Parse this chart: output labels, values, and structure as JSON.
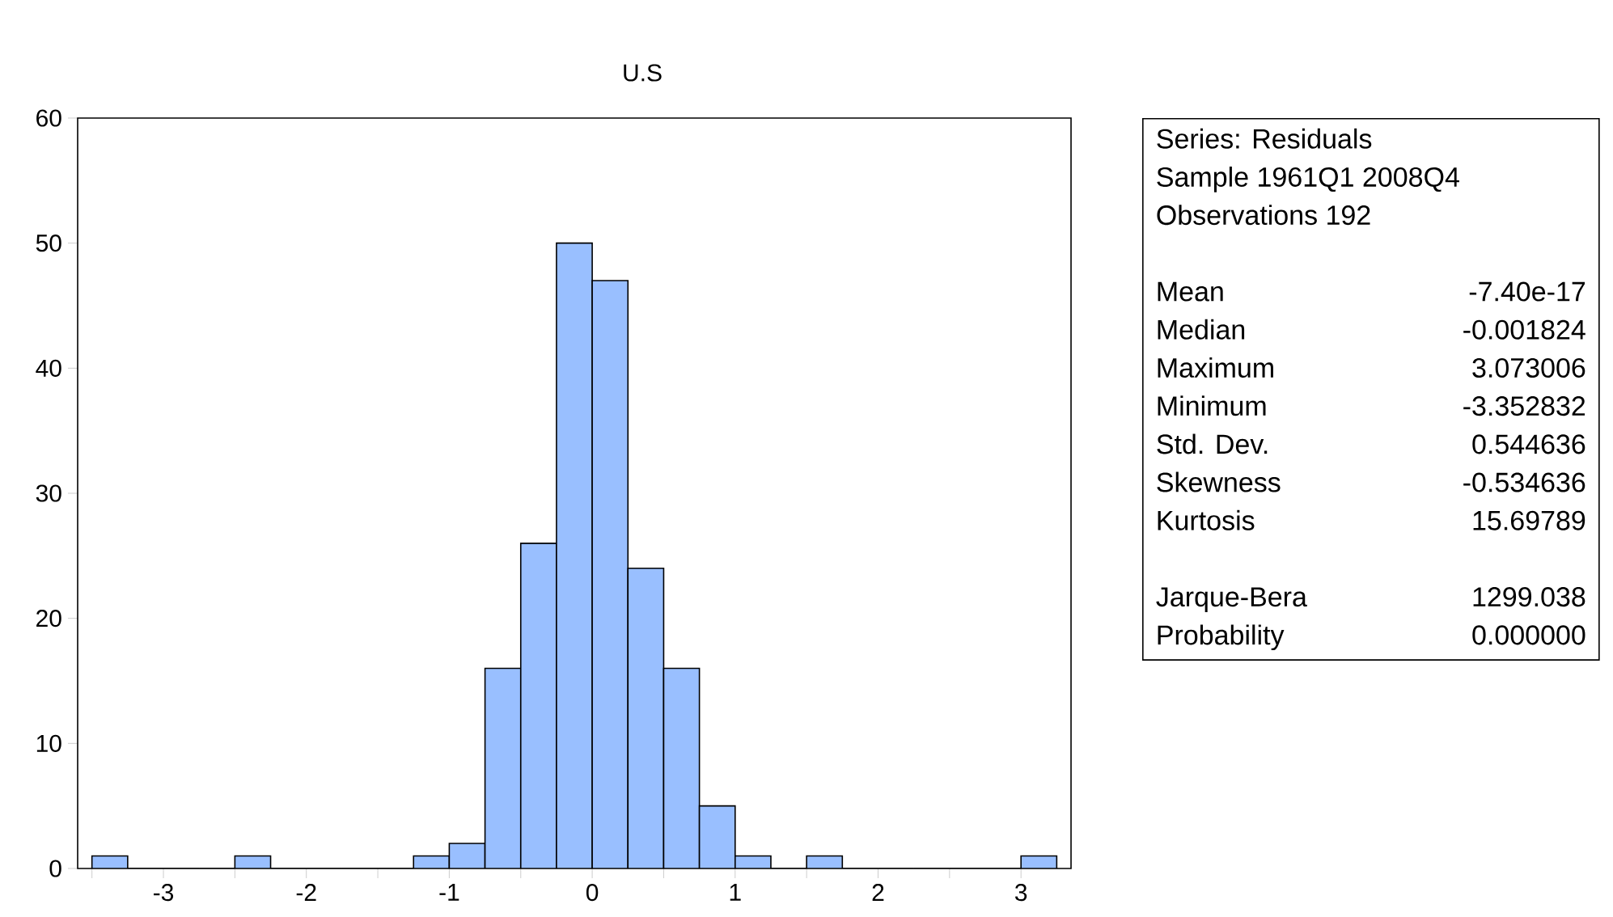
{
  "chart_data": {
    "type": "histogram",
    "title": "U.S",
    "color": "#99bfff",
    "bins": [
      -3.5,
      -3.25,
      -3.0,
      -2.75,
      -2.5,
      -2.25,
      -2.0,
      -1.75,
      -1.5,
      -1.25,
      -1.0,
      -0.75,
      -0.5,
      -0.25,
      0,
      0.25,
      0.5,
      0.75,
      1.0,
      1.25,
      1.5,
      1.75,
      2.0,
      2.25,
      2.5,
      2.75,
      3.0,
      3.25
    ],
    "values": [
      1,
      0,
      0,
      0,
      1,
      0,
      0,
      0,
      0,
      1,
      2,
      16,
      26,
      50,
      47,
      24,
      16,
      5,
      1,
      0,
      1,
      0,
      0,
      0,
      0,
      0,
      1
    ],
    "xlim": [
      -3.6,
      3.35
    ],
    "ylim": [
      0,
      60
    ],
    "xticks": [
      {
        "value": -3.5,
        "label": null
      },
      -3,
      {
        "value": -2.5,
        "label": null
      },
      -2,
      {
        "value": -1.5,
        "label": null
      },
      -1,
      {
        "value": -0.5,
        "label": null
      },
      0,
      {
        "value": 0.5,
        "label": null
      },
      1,
      {
        "value": 1.5,
        "label": null
      },
      2,
      {
        "value": 2.5,
        "label": null
      },
      3
    ],
    "yticks": [
      0,
      10,
      20,
      30,
      40,
      50,
      60
    ],
    "grid": false,
    "annotations": [
      "Series: Residuals",
      "Sample 1961Q1 2008Q4",
      "Observations 192",
      "Mean",
      "-7.40e-17",
      "Median",
      "-0.001824",
      "Maximum",
      "3.073006",
      "Minimum",
      "-3.352832",
      "Std. Dev.",
      "0.544636",
      "Skewness",
      "-0.534636",
      "Kurtosis",
      "15.69789",
      "Jarque-Bera",
      "1299.038",
      "Probability",
      "0.000000"
    ]
  }
}
